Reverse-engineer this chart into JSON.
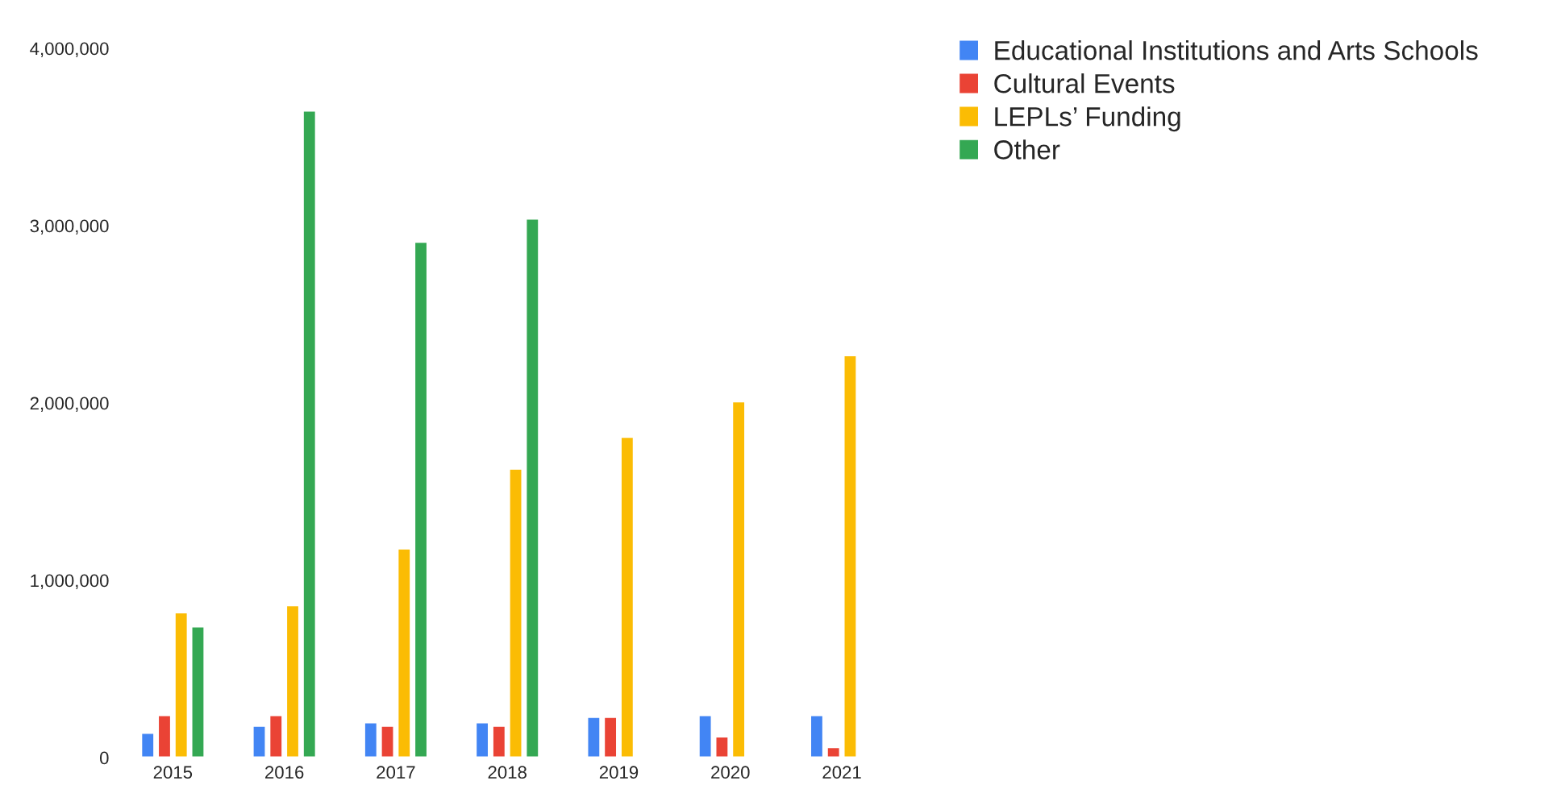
{
  "chart_data": {
    "type": "bar",
    "categories": [
      "2015",
      "2016",
      "2017",
      "2018",
      "2019",
      "2020",
      "2021"
    ],
    "series": [
      {
        "name": "Educational Institutions and Arts Schools",
        "color": "#4285f4",
        "values": [
          140000,
          180000,
          200000,
          200000,
          230000,
          240000,
          240000
        ]
      },
      {
        "name": "Cultural Events",
        "color": "#ea4335",
        "values": [
          240000,
          240000,
          180000,
          180000,
          230000,
          120000,
          60000
        ]
      },
      {
        "name": "LEPLs’ Funding",
        "color": "#fbbc04",
        "values": [
          820000,
          860000,
          1180000,
          1630000,
          1810000,
          2010000,
          2270000
        ]
      },
      {
        "name": "Other",
        "color": "#34a853",
        "values": [
          740000,
          3650000,
          2910000,
          3040000,
          10000,
          10000,
          10000
        ]
      }
    ],
    "ylim": [
      0,
      4000000
    ],
    "yticks": [
      {
        "value": 0,
        "label": "0"
      },
      {
        "value": 1000000,
        "label": "1,000,000"
      },
      {
        "value": 2000000,
        "label": "2,000,000"
      },
      {
        "value": 3000000,
        "label": "3,000,000"
      },
      {
        "value": 4000000,
        "label": "4,000,000"
      }
    ],
    "legend": "top right"
  }
}
